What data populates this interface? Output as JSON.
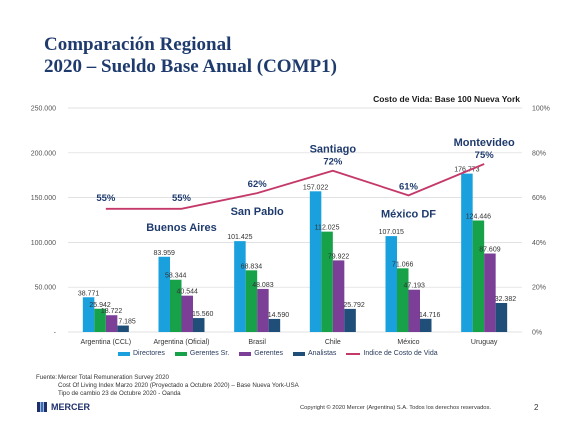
{
  "title": {
    "line1": "Comparación Regional",
    "line2": "2020 – Sueldo Base Anual (COMP1)"
  },
  "chart_subtitle": "Costo de Vida: Base 100 Nueva York",
  "chart_data": {
    "type": "bar",
    "categories": [
      "Argentina (CCL)",
      "Argentina (Oficial)",
      "Brasil",
      "Chile",
      "México",
      "Uruguay"
    ],
    "series": [
      {
        "name": "Directores",
        "color": "#1aa0dd",
        "values": [
          38771,
          83959,
          101425,
          157022,
          107015,
          176773
        ],
        "labels": [
          "38.771",
          "83.959",
          "101.425",
          "157.022",
          "107.015",
          "176.773"
        ]
      },
      {
        "name": "Gerentes Sr.",
        "color": "#17a24a",
        "values": [
          25942,
          58344,
          68834,
          112025,
          71066,
          124446
        ],
        "labels": [
          "25.942",
          "58.344",
          "68.834",
          "112.025",
          "71.066",
          "124.446"
        ]
      },
      {
        "name": "Gerentes",
        "color": "#7b3f98",
        "values": [
          18722,
          40544,
          48083,
          79922,
          47193,
          87609
        ],
        "labels": [
          "18.722",
          "40.544",
          "48.083",
          "79.922",
          "47.193",
          "87.609"
        ]
      },
      {
        "name": "Analistas",
        "color": "#1f4e79",
        "values": [
          7185,
          15560,
          14590,
          25792,
          14716,
          32382
        ],
        "labels": [
          "7.185",
          "15.560",
          "14.590",
          "25.792",
          "14.716",
          "32.382"
        ]
      }
    ],
    "line_series": {
      "name": "Indice de Costo de Vida",
      "color": "#c4396a",
      "values": [
        55,
        55,
        62,
        72,
        61,
        75
      ],
      "labels": [
        "55%",
        "55%",
        "62%",
        "72%",
        "61%",
        "75%"
      ]
    },
    "city_labels": [
      "",
      "Buenos Aires",
      "San Pablo",
      "Santiago",
      "México DF",
      "Montevideo"
    ],
    "ylim": [
      0,
      250000
    ],
    "y_ticks": [
      "-",
      "50.000",
      "100.000",
      "150.000",
      "200.000",
      "250.000"
    ],
    "y2lim": [
      0,
      100
    ],
    "y2_ticks": [
      "0%",
      "20%",
      "40%",
      "60%",
      "80%",
      "100%"
    ],
    "grid": true,
    "legend_position": "bottom"
  },
  "footer": {
    "label": "Fuente:",
    "lines": [
      "Mercer Total Remuneration Survey 2020",
      "Cost Of Living Index Marzo 2020 (Proyectado a Octubre 2020) – Base Nueva York-USA",
      "Tipo de cambio 23 de Octubre 2020 - Oanda"
    ]
  },
  "brand": "MERCER",
  "copyright": "Copyright © 2020 Mercer (Argentina) S.A. Todos los derechos reservados.",
  "page_number": "2"
}
